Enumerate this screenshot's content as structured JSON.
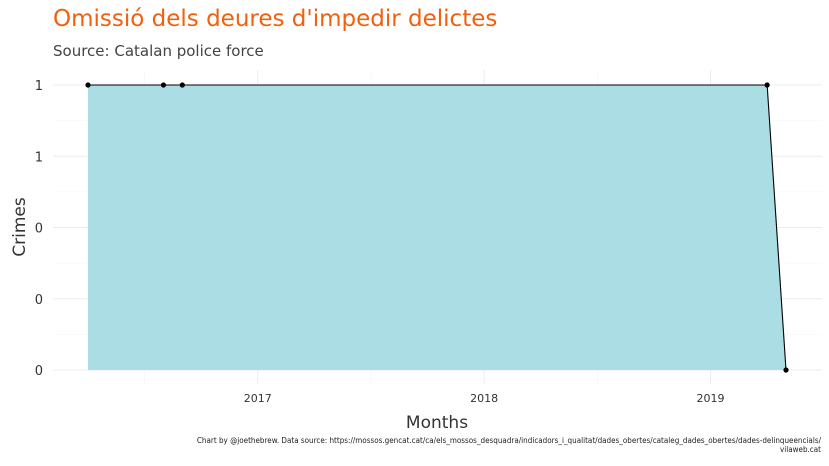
{
  "chart_data": {
    "type": "area",
    "title": "Omissió dels deures d'impedir delictes",
    "subtitle": "Source: Catalan police force",
    "xlabel": "Months",
    "ylabel": "Crimes",
    "x": [
      "2016-04",
      "2016-08",
      "2016-09",
      "2019-04",
      "2019-05"
    ],
    "values": [
      1,
      1,
      1,
      1,
      0
    ],
    "x_ticks": [
      "2017",
      "2018",
      "2019"
    ],
    "y_ticks": [
      "0",
      "0",
      "0",
      "1",
      "1"
    ],
    "ylim": [
      0,
      1
    ],
    "xlim": [
      "2016-03",
      "2019-06"
    ],
    "grid": true,
    "fill_color": "#aadee4",
    "line_color": "#000000",
    "point_color": "#000000",
    "caption_lines": [
      "Chart by @joethebrew. Data source: https://mossos.gencat.cat/ca/els_mossos_desquadra/indicadors_i_qualitat/dades_obertes/cataleg_dades_obertes/dades-delinqueencials/",
      "vilaweb.cat"
    ]
  }
}
